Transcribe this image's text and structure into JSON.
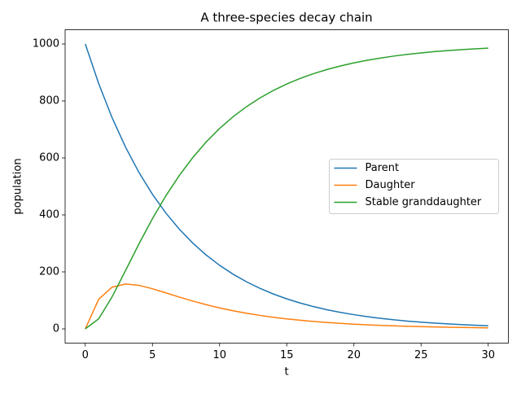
{
  "chart_data": {
    "type": "line",
    "title": "A three-species decay chain",
    "x_label": "t",
    "y_label": "population",
    "x": [
      0,
      1,
      2,
      3,
      4,
      5,
      6,
      7,
      8,
      9,
      10,
      11,
      12,
      13,
      14,
      15,
      16,
      17,
      18,
      19,
      20,
      21,
      22,
      23,
      24,
      25,
      26,
      27,
      28,
      29,
      30
    ],
    "series": [
      {
        "name": "Parent",
        "color": "#1f77b4",
        "values": [
          1000,
          860.7,
          740.8,
          637.6,
          548.8,
          472.4,
          406.6,
          349.9,
          301.2,
          259.2,
          223.1,
          192.0,
          165.3,
          142.3,
          122.5,
          105.4,
          90.7,
          78.1,
          67.2,
          57.8,
          49.8,
          42.9,
          36.9,
          31.7,
          27.3,
          23.5,
          20.2,
          17.4,
          15.0,
          12.9,
          11.1
        ]
      },
      {
        "name": "Daughter",
        "color": "#ff7f0e",
        "values": [
          0,
          104.0,
          146.5,
          157.4,
          152.7,
          140.9,
          126.4,
          111.6,
          97.7,
          84.9,
          73.5,
          63.5,
          54.9,
          47.3,
          40.8,
          35.1,
          30.2,
          26.0,
          22.4,
          19.3,
          16.6,
          14.3,
          12.3,
          10.6,
          9.1,
          7.8,
          6.7,
          5.8,
          5.0,
          4.3,
          3.7
        ]
      },
      {
        "name": "Stable granddaughter",
        "color": "#2ca02c",
        "values": [
          0,
          35.3,
          112.7,
          205.0,
          298.5,
          386.7,
          467.0,
          538.5,
          601.1,
          655.9,
          703.4,
          744.5,
          779.8,
          810.4,
          836.7,
          859.5,
          879.1,
          895.9,
          910.4,
          922.9,
          933.6,
          942.8,
          950.8,
          957.7,
          963.6,
          968.7,
          973.1,
          976.8,
          980.0,
          982.8,
          985.2
        ]
      }
    ],
    "xlim": [
      -1.5,
      31.5
    ],
    "xticks": [
      0,
      5,
      10,
      15,
      20,
      25,
      30
    ],
    "ylim": [
      -50,
      1050
    ],
    "yticks": [
      0,
      200,
      400,
      600,
      800,
      1000
    ],
    "legend": "center right"
  }
}
